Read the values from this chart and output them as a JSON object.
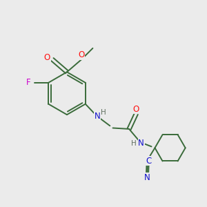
{
  "background_color": "#ebebeb",
  "bond_color": "#3a6b3a",
  "atom_colors": {
    "O": "#ff1010",
    "F": "#cc00cc",
    "N": "#1010cc",
    "C": "#1010cc",
    "H": "#607060"
  },
  "figsize": [
    3.0,
    3.0
  ],
  "dpi": 100,
  "bond_lw": 1.4,
  "font_size": 8.5
}
